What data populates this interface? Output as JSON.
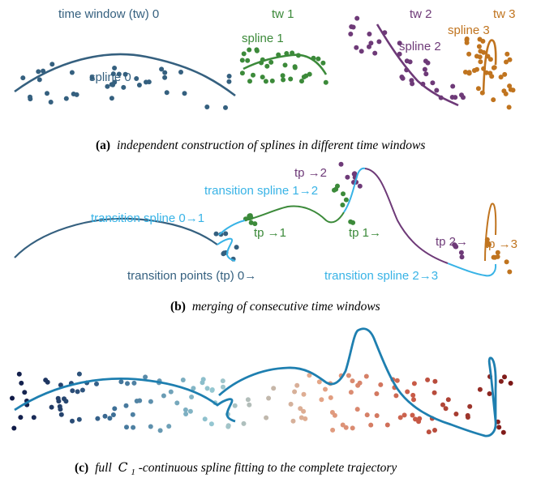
{
  "colors": {
    "tw0": "#35607f",
    "tw1": "#3c8a3a",
    "tw2": "#6e3a78",
    "tw3": "#c0741f",
    "transition": "#38b3e6",
    "full": "#1e7fb0"
  },
  "panel_a": {
    "labels": {
      "tw0": "time window (tw) 0",
      "tw1": "tw 1",
      "tw2": "tw 2",
      "tw3": "tw 3",
      "spline0": "spline 0",
      "spline1": "spline 1",
      "spline2": "spline 2",
      "spline3": "spline 3"
    },
    "caption_tag": "(a)",
    "caption_text": "independent construction of splines in different time windows"
  },
  "panel_b": {
    "labels": {
      "tp_to_2": "tp →2",
      "transition_1_2": "transition spline 1→2",
      "transition_0_1": "transition spline 0→1",
      "tp_to_1": "tp →1",
      "tp_1_from": "tp 1→",
      "tp_2_from": "tp 2→",
      "tp_to_3": "tp →3",
      "transition_points_0": "transition points (tp) 0→",
      "transition_2_3": "transition spline 2→3"
    },
    "caption_tag": "(b)",
    "caption_text": "merging of consecutive time windows"
  },
  "panel_c": {
    "caption_tag": "(c)",
    "caption_text_pre": "full",
    "caption_math": "C",
    "caption_sub": "1",
    "caption_text_post": "-continuous spline fitting to the complete trajectory"
  }
}
